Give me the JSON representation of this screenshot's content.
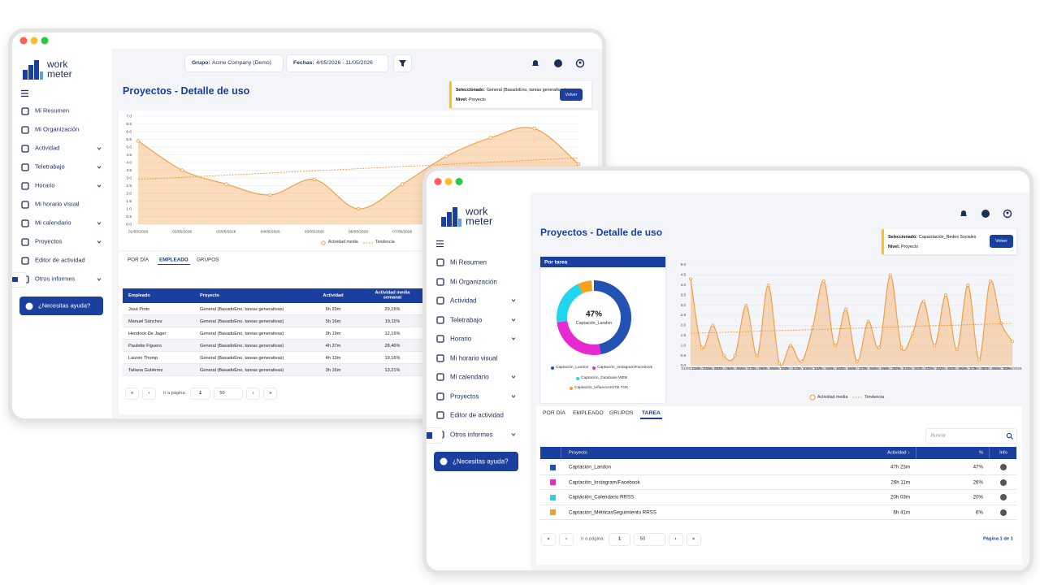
{
  "back_window": {
    "logo": [
      "work",
      "meter"
    ],
    "menu": [
      {
        "label": "Mi Resumen",
        "submenu": false
      },
      {
        "label": "Mi Organización",
        "submenu": false
      },
      {
        "label": "Actividad",
        "submenu": true
      },
      {
        "label": "Teletrabajo",
        "submenu": true
      },
      {
        "label": "Horario",
        "submenu": true
      },
      {
        "label": "Mi horario visual",
        "submenu": false
      },
      {
        "label": "Mi calendario",
        "submenu": true
      },
      {
        "label": "Proyectos",
        "submenu": true
      },
      {
        "label": "Editor de actividad",
        "submenu": false
      },
      {
        "label": "Otros informes",
        "submenu": true
      }
    ],
    "help_button": "¿Necesitas ayuda?",
    "filters": [
      {
        "label": "Grupo:",
        "value": "Acme Company (Demo)"
      },
      {
        "label": "Fechas:",
        "value": "4/05/2026 - 11/05/2026"
      }
    ],
    "title": "Proyectos - Detalle de uso",
    "selection": {
      "label": "Seleccionado:",
      "value": "General (BasadoEno, tareas generativas)",
      "level_label": "Nivel:",
      "level": "Proyecto",
      "button": "Volver"
    },
    "chart": {
      "type": "line",
      "categories": [
        "01/05/2026",
        "02/05/2026",
        "03/05/2026",
        "04/05/2026",
        "05/05/2026",
        "06/05/2026",
        "07/05/2026",
        null,
        null,
        null,
        null
      ],
      "series": [
        {
          "name": "Actividad media",
          "color": "#f39a3e",
          "values": [
            5.4,
            3.5,
            2.6,
            1.9,
            2.9,
            1.0,
            2.6,
            4.4,
            5.6,
            6.2,
            3.9
          ]
        }
      ],
      "trend": {
        "name": "Tendencia",
        "color": "#f39a3e",
        "values": [
          2.9,
          4.3
        ]
      },
      "ylim": [
        0,
        7
      ],
      "yticks": [
        {
          "value": 0,
          "label": "0.0"
        },
        0.5,
        {
          "value": 1,
          "label": "1.0"
        },
        1.5,
        {
          "value": 2,
          "label": "2.0"
        },
        2.5,
        {
          "value": 3,
          "label": "3.0"
        },
        3.5,
        {
          "value": 4,
          "label": "4.0"
        },
        4.5,
        {
          "value": 5,
          "label": "5.0"
        },
        5.5,
        {
          "value": 6,
          "label": "6.0"
        },
        6.5,
        {
          "value": 7,
          "label": "7.0"
        }
      ],
      "grid": true
    },
    "tabs": [
      "POR DÍA",
      "EMPLEADO",
      "GRUPOS"
    ],
    "active_tab": 1,
    "table": {
      "columns": [
        "Empleado",
        "Proyecto",
        "Actividad",
        "Actividad media semanal"
      ],
      "rows": [
        [
          "José Pinto",
          "General (BasadoEno, tareas generativas)",
          "6h 29m",
          "29,15%"
        ],
        [
          "Manuel Sánchez",
          "General (BasadoEno, tareas generativas)",
          "5h 16m",
          "19,11%"
        ],
        [
          "Hendrick De Jager",
          "General (BasadoEno, tareas generativas)",
          "3h 19m",
          "12,16%"
        ],
        [
          "Paulette Figuero",
          "General (BasadoEno, tareas generativas)",
          "4h 37m",
          "28,46%"
        ],
        [
          "Lauren Thomp",
          "General (BasadoEno, tareas generativas)",
          "4h 13m",
          "19,16%"
        ],
        [
          "Tatiana Gutiérrez",
          "General (BasadoEno, tareas generativas)",
          "3h 16m",
          "13,21%"
        ]
      ]
    },
    "pagination": {
      "first": "«",
      "prev": "‹",
      "goto_label": "Ir a página:",
      "page": 1,
      "page_size": 50,
      "next": "›",
      "last": "»"
    }
  },
  "front_window": {
    "logo": [
      "work",
      "meter"
    ],
    "menu": [
      {
        "label": "Mi Resumen",
        "submenu": false
      },
      {
        "label": "Mi Organización",
        "submenu": false
      },
      {
        "label": "Actividad",
        "submenu": true
      },
      {
        "label": "Teletrabajo",
        "submenu": true
      },
      {
        "label": "Horario",
        "submenu": true
      },
      {
        "label": "Mi horario visual",
        "submenu": false
      },
      {
        "label": "Mi calendario",
        "submenu": true
      },
      {
        "label": "Proyectos",
        "submenu": true
      },
      {
        "label": "Editor de actividad",
        "submenu": false
      },
      {
        "label": "Otros informes",
        "submenu": true
      }
    ],
    "help_button": "¿Necesitas ayuda?",
    "title": "Proyectos - Detalle de uso",
    "selection": {
      "label": "Seleccionado:",
      "value": "Capacitación_Redes Sociales",
      "level_label": "Nivel:",
      "level": "Proyecto",
      "button": "Volver"
    },
    "donut": {
      "type": "pie",
      "title": "Por tarea",
      "categories": [
        "Captación_Landon",
        "Captación_Instagram/Facebook",
        "Captación_Database WEB",
        "Captación_Influencers/Tik TOK"
      ],
      "values": [
        47,
        26,
        20,
        6
      ],
      "colors": [
        "#2352b5",
        "#e629d0",
        "#20d6ee",
        "#f5a11c"
      ],
      "center_value": "47%",
      "center_label": "Captación_Landon"
    },
    "chart": {
      "type": "line",
      "categories": [
        "01/05/2026",
        "02/05/2026",
        "03/05/2026",
        "04/05/2026",
        "05/05/2026",
        "06/05/2026",
        "07/05/2026",
        "08/05/2026",
        "09/05/2026",
        "10/05/2026",
        "11/05/2026",
        "12/05/2026",
        "13/05/2026",
        "14/05/2026",
        "15/05/2026",
        "16/05/2026",
        "17/05/2026",
        "18/05/2026",
        "19/05/2026",
        "20/05/2026",
        "21/05/2026",
        "22/05/2026",
        "23/05/2026",
        "24/05/2026",
        "25/05/2026",
        "26/05/2026",
        "27/05/2026",
        "28/05/2026",
        "29/05/2026",
        "30/05/2026"
      ],
      "series": [
        {
          "name": "Actividad media",
          "color": "#f39a3e",
          "values": [
            4.3,
            0.9,
            2.0,
            0.5,
            0.5,
            3.0,
            0.5,
            4.0,
            0.1,
            1.0,
            0.2,
            1.9,
            4.2,
            1.0,
            2.8,
            0.2,
            2.2,
            0.9,
            4.5,
            0.9,
            1.6,
            3.2,
            1.0,
            3.5,
            0.8,
            4.0,
            0.3,
            4.2,
            2.1,
            1.2
          ]
        }
      ],
      "trend": {
        "name": "Tendencia",
        "color": "#f39a3e",
        "values": [
          1.6,
          2.1
        ]
      },
      "ylim": [
        0,
        5
      ],
      "yticks": [
        {
          "value": 0,
          "label": "0.0"
        },
        0.5,
        {
          "value": 1,
          "label": "1.0"
        },
        1.5,
        {
          "value": 2,
          "label": "2.0"
        },
        2.5,
        {
          "value": 3,
          "label": "3.0"
        },
        3.5,
        {
          "value": 4,
          "label": "4.0"
        },
        4.5,
        {
          "value": 5,
          "label": "5.0"
        }
      ],
      "grid": true
    },
    "tabs": [
      "POR DÍA",
      "EMPLEADO",
      "GRUPOS",
      "TAREA"
    ],
    "active_tab": 3,
    "search_placeholder": "Buscar",
    "table": {
      "columns": [
        "Proyecto",
        "Actividad ↓",
        "%",
        "Info"
      ],
      "rows": [
        {
          "color": "#2352b5",
          "name": "Captación_Landon",
          "activity": "47h 23m",
          "percent": "47%"
        },
        {
          "color": "#e629d0",
          "name": "Captación_Instagram/Facebook",
          "activity": "26h 11m",
          "percent": "26%"
        },
        {
          "color": "#20d6ee",
          "name": "Captación_Calendario RRSS",
          "activity": "20h 03m",
          "percent": "20%"
        },
        {
          "color": "#f5a11c",
          "name": "Captación_MétricasSeguimiento RRSS",
          "activity": "6h 41m",
          "percent": "6%"
        }
      ]
    },
    "pagination": {
      "first": "«",
      "prev": "‹",
      "goto_label": "Ir a página:",
      "page": 1,
      "page_size": 50,
      "next": "›",
      "last": "»",
      "page_info": "Página 1 de 1"
    }
  }
}
